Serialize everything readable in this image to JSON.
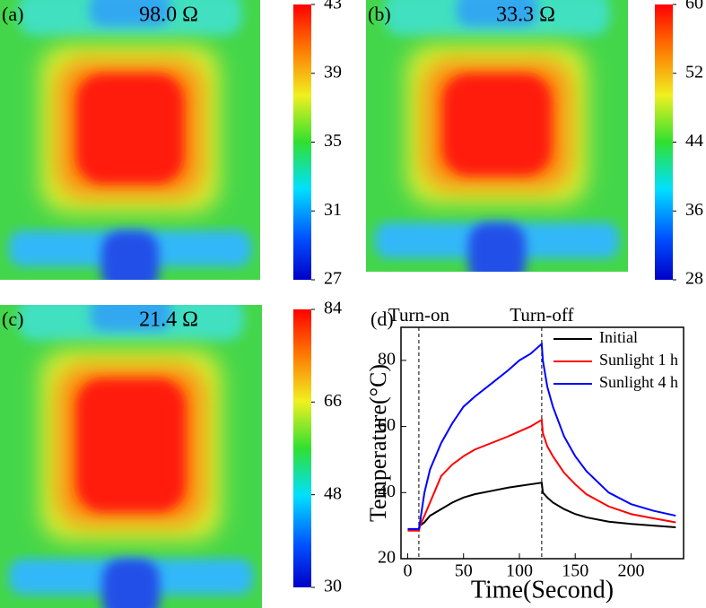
{
  "chart_data": [
    {
      "type": "thermal-image",
      "label": "(a)",
      "title": "98.0 Ω",
      "clim": [
        27,
        43
      ],
      "colorbar_ticks": [
        27,
        31,
        35,
        39,
        43
      ]
    },
    {
      "type": "thermal-image",
      "label": "(b)",
      "title": "33.3 Ω",
      "clim": [
        28,
        60
      ],
      "colorbar_ticks": [
        28,
        36,
        44,
        52,
        60
      ]
    },
    {
      "type": "thermal-image",
      "label": "(c)",
      "title": "21.4 Ω",
      "clim": [
        30,
        84
      ],
      "colorbar_ticks": [
        30,
        48,
        66,
        84
      ]
    },
    {
      "type": "line",
      "label": "(d)",
      "xlabel": "Time(Second)",
      "ylabel": "Temperature(°C)",
      "x": [
        0,
        10,
        11,
        15,
        20,
        30,
        40,
        50,
        60,
        75,
        90,
        100,
        110,
        120,
        121,
        125,
        130,
        140,
        150,
        160,
        180,
        200,
        220,
        240
      ],
      "series": [
        {
          "name": "Initial",
          "color": "#000000",
          "values": [
            28.5,
            28.5,
            30,
            31,
            33,
            35,
            37,
            38.5,
            39.5,
            40.5,
            41.5,
            42,
            42.5,
            43,
            40,
            38.5,
            37,
            35,
            33.5,
            32.5,
            31.2,
            30.5,
            30,
            29.5
          ]
        },
        {
          "name": "Sunlight 1 h",
          "color": "#ff0000",
          "values": [
            28.5,
            28.5,
            30,
            33,
            37,
            45,
            48.5,
            51,
            53,
            55,
            57,
            58.5,
            60,
            62,
            58,
            54,
            51,
            46,
            42.5,
            39.5,
            35.8,
            33.5,
            32.2,
            31
          ]
        },
        {
          "name": "Sunlight 4 h",
          "color": "#0000ff",
          "values": [
            29,
            29,
            31,
            40,
            47,
            55,
            61,
            66,
            69,
            73,
            77,
            80,
            82,
            85,
            80,
            72,
            66,
            57,
            51,
            46.5,
            40,
            36.5,
            34.5,
            33
          ]
        }
      ],
      "annotations": [
        {
          "text": "Turn-on",
          "x": 10
        },
        {
          "text": "Turn-off",
          "x": 120
        }
      ],
      "xlim": [
        -6,
        247
      ],
      "ylim": [
        20,
        90
      ],
      "xticks": [
        0,
        50,
        100,
        150,
        200
      ],
      "yticks": [
        20,
        40,
        60,
        80
      ],
      "legend": "upper right"
    }
  ]
}
